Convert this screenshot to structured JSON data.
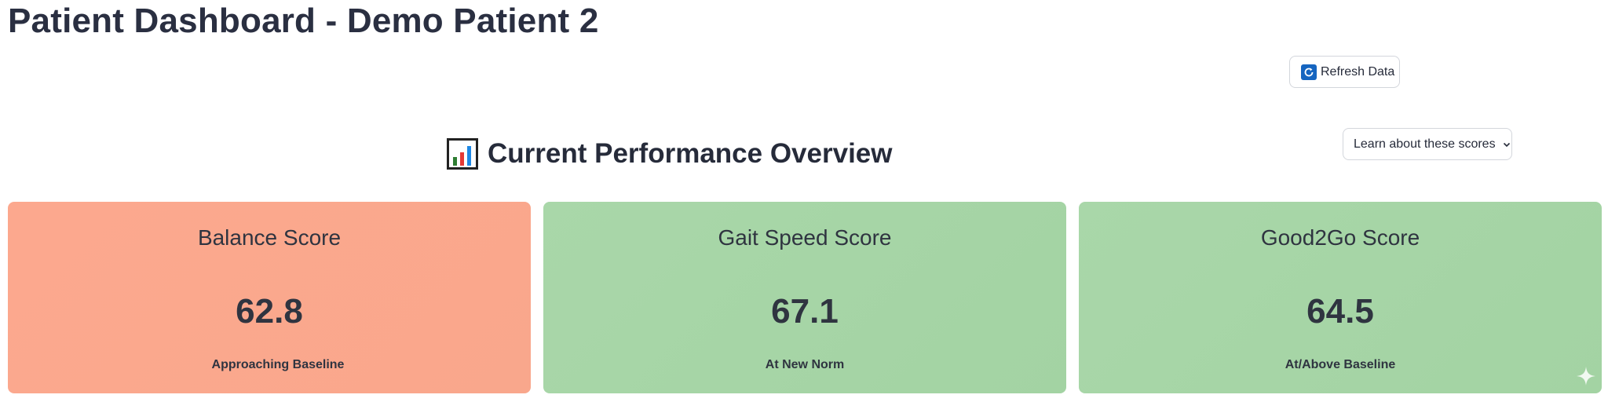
{
  "page": {
    "title": "Patient Dashboard - Demo Patient 2"
  },
  "toolbar": {
    "refresh_label": "Refresh Data",
    "refresh_icon": "refresh-icon",
    "learn_label": "Learn about these scores",
    "learn_icon": "chevron-down-icon"
  },
  "section": {
    "title": "Current Performance Overview",
    "icon": "bar-chart-icon"
  },
  "cards": [
    {
      "title": "Balance Score",
      "value": "62.8",
      "status": "Approaching Baseline",
      "color": "#fca88e"
    },
    {
      "title": "Gait Speed Score",
      "value": "67.1",
      "status": "At New Norm",
      "color": "#a7d6a7"
    },
    {
      "title": "Good2Go Score",
      "value": "64.5",
      "status": "At/Above Baseline",
      "color": "#a7d6a7"
    }
  ],
  "colors": {
    "text": "#262b3a",
    "refresh_icon_bg": "#1565c0",
    "border": "#d3d6dc"
  }
}
